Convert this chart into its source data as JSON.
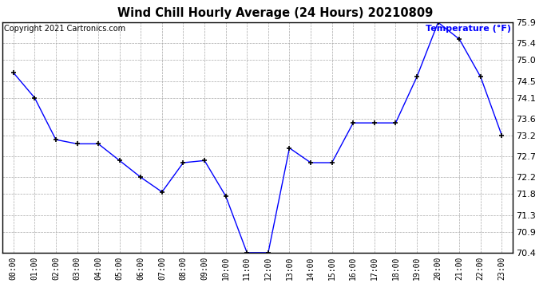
{
  "title": "Wind Chill Hourly Average (24 Hours) 20210809",
  "copyright": "Copyright 2021 Cartronics.com",
  "legend_label": "Temperature (°F)",
  "hours": [
    "00:00",
    "01:00",
    "02:00",
    "03:00",
    "04:00",
    "05:00",
    "06:00",
    "07:00",
    "08:00",
    "09:00",
    "10:00",
    "11:00",
    "12:00",
    "13:00",
    "14:00",
    "15:00",
    "16:00",
    "17:00",
    "18:00",
    "19:00",
    "20:00",
    "21:00",
    "22:00",
    "23:00"
  ],
  "values": [
    74.7,
    74.1,
    73.1,
    73.0,
    73.0,
    72.6,
    72.2,
    71.85,
    72.55,
    72.6,
    71.75,
    70.4,
    70.4,
    72.9,
    72.55,
    72.55,
    73.5,
    73.5,
    73.5,
    74.6,
    75.9,
    75.5,
    74.6,
    73.2
  ],
  "ylim": [
    70.4,
    75.9
  ],
  "yticks": [
    70.4,
    70.9,
    71.3,
    71.8,
    72.2,
    72.7,
    73.2,
    73.6,
    74.1,
    74.5,
    75.0,
    75.4,
    75.9
  ],
  "line_color": "blue",
  "marker": "+",
  "bg_color": "#ffffff",
  "plot_bg_color": "#ffffff",
  "grid_color": "#aaaaaa",
  "title_color": "#000000",
  "copyright_color": "#000000",
  "legend_color": "blue",
  "tick_label_color": "#000000",
  "border_color": "#000000"
}
